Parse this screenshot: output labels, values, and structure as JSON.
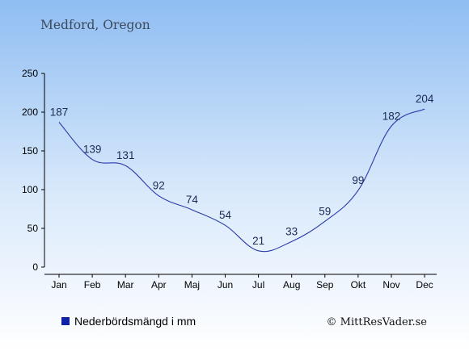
{
  "chart_data": {
    "type": "line",
    "title": "Medford, Oregon",
    "categories": [
      "Jan",
      "Feb",
      "Mar",
      "Apr",
      "Maj",
      "Jun",
      "Jul",
      "Aug",
      "Sep",
      "Okt",
      "Nov",
      "Dec"
    ],
    "series": [
      {
        "name": "Nederbördsmängd i mm",
        "values": [
          187,
          139,
          131,
          92,
          74,
          54,
          21,
          33,
          59,
          99,
          182,
          204
        ]
      }
    ],
    "ylim": [
      0,
      250
    ],
    "yticks": [
      0,
      50,
      100,
      150,
      200,
      250
    ],
    "grid": false,
    "legend_position": "bottom-left",
    "line_color": "#2a3aa8",
    "legend_color": "#1022a6"
  },
  "credit": "© MittResVader.se"
}
